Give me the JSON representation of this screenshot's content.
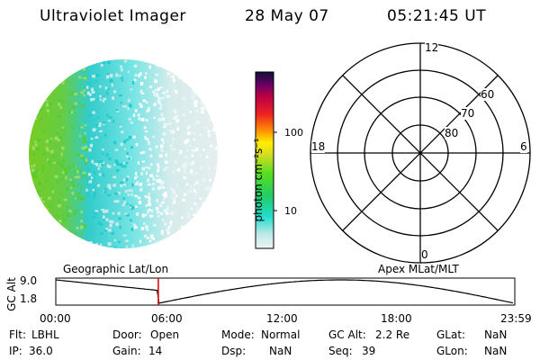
{
  "header": {
    "title": "Ultraviolet Imager",
    "date": "28 May 07",
    "time": "05:21:45 UT"
  },
  "colorbar": {
    "unit_label": "photon cm⁻²s⁻¹",
    "tick_100": "100",
    "tick_10": "10"
  },
  "polar_plot": {
    "labels": {
      "top": "12",
      "left": "18",
      "right": "6",
      "bottom": "0"
    },
    "ring_labels": [
      "80",
      "70",
      "60"
    ]
  },
  "timeline": {
    "left_title": "Geographic Lat/Lon",
    "right_title": "Apex  MLat/MLT",
    "axis_label": "GC Alt",
    "y_max": "9.0",
    "y_min": "1.8",
    "x_ticks": [
      "00:00",
      "06:00",
      "12:00",
      "18:00",
      "23:59"
    ],
    "current_time_hours": 5.36,
    "orbit_minimum_hours": 5.36,
    "orbit_maximum_hours": 14.9
  },
  "footer": {
    "flt": {
      "label": "Flt:",
      "value": "LBHL"
    },
    "door": {
      "label": "Door:",
      "value": "Open"
    },
    "mode": {
      "label": "Mode:",
      "value": "Normal"
    },
    "gcalt": {
      "label": "GC Alt:",
      "value": "2.2 Re"
    },
    "glat": {
      "label": "GLat:",
      "value": "NaN"
    },
    "ip": {
      "label": "IP:",
      "value": "36.0"
    },
    "gain": {
      "label": "Gain:",
      "value": "14"
    },
    "dsp": {
      "label": "Dsp:",
      "value": "NaN"
    },
    "seq": {
      "label": "Seq:",
      "value": "39"
    },
    "glon": {
      "label": "GLon:",
      "value": "NaN"
    }
  },
  "colors": {
    "cursor": "#e00000",
    "curve": "#000000",
    "disk_green": "#66cc33",
    "disk_cyan": "#33dddd",
    "disk_pale": "#d8ecec"
  }
}
